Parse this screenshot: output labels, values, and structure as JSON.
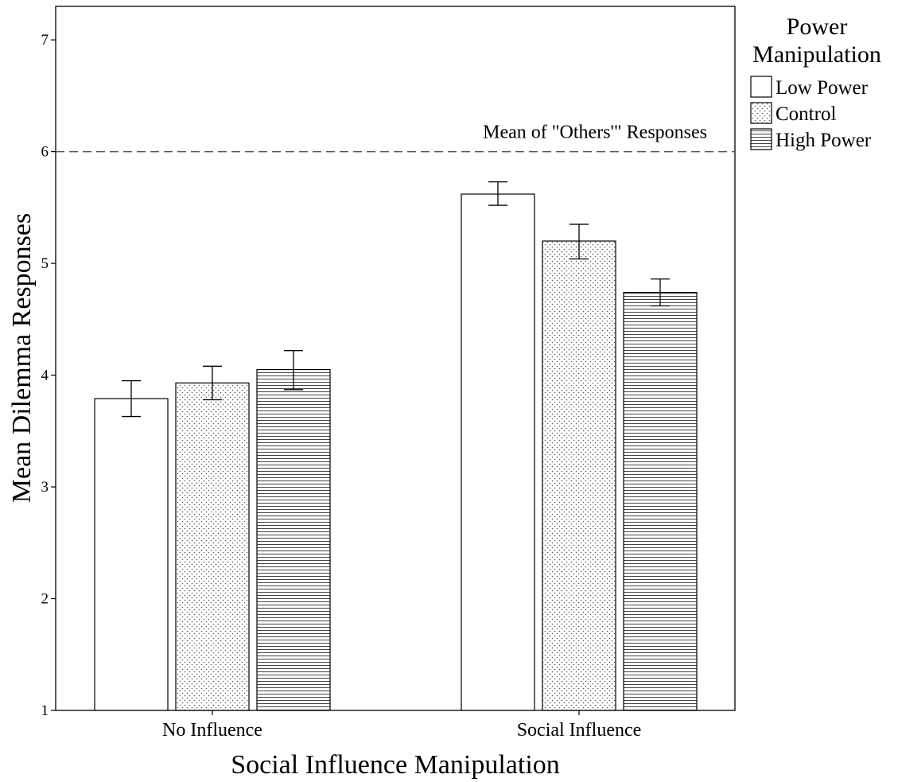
{
  "chart_data": {
    "type": "bar",
    "title": "",
    "xlabel": "Social Influence Manipulation",
    "ylabel": "Mean Dilemma Responses",
    "ylim": [
      1,
      7.3
    ],
    "yticks": [
      1,
      2,
      3,
      4,
      5,
      6,
      7
    ],
    "categories": [
      "No Influence",
      "Social Influence"
    ],
    "series": [
      {
        "name": "Low Power",
        "pattern": "none",
        "values": [
          3.79,
          5.62
        ],
        "error_low": [
          3.63,
          5.52
        ],
        "error_high": [
          3.95,
          5.73
        ]
      },
      {
        "name": "Control",
        "pattern": "dots",
        "values": [
          3.93,
          5.2
        ],
        "error_low": [
          3.78,
          5.04
        ],
        "error_high": [
          4.08,
          5.35
        ]
      },
      {
        "name": "High Power",
        "pattern": "horizontal-lines",
        "values": [
          4.05,
          4.74
        ],
        "error_low": [
          3.87,
          4.62
        ],
        "error_high": [
          4.22,
          4.86
        ]
      }
    ],
    "reference_line": {
      "value": 6,
      "label": "Mean of \"Others'\" Responses",
      "style": "dashed"
    },
    "legend": {
      "title": "Power Manipulation",
      "title_lines": [
        "Power",
        "Manipulation"
      ],
      "position": "right-top"
    },
    "grid": false,
    "colors": {
      "bar_fill": "#ffffff",
      "ink": "#000000",
      "pattern": "#555555",
      "reference_line": "#555555"
    }
  }
}
